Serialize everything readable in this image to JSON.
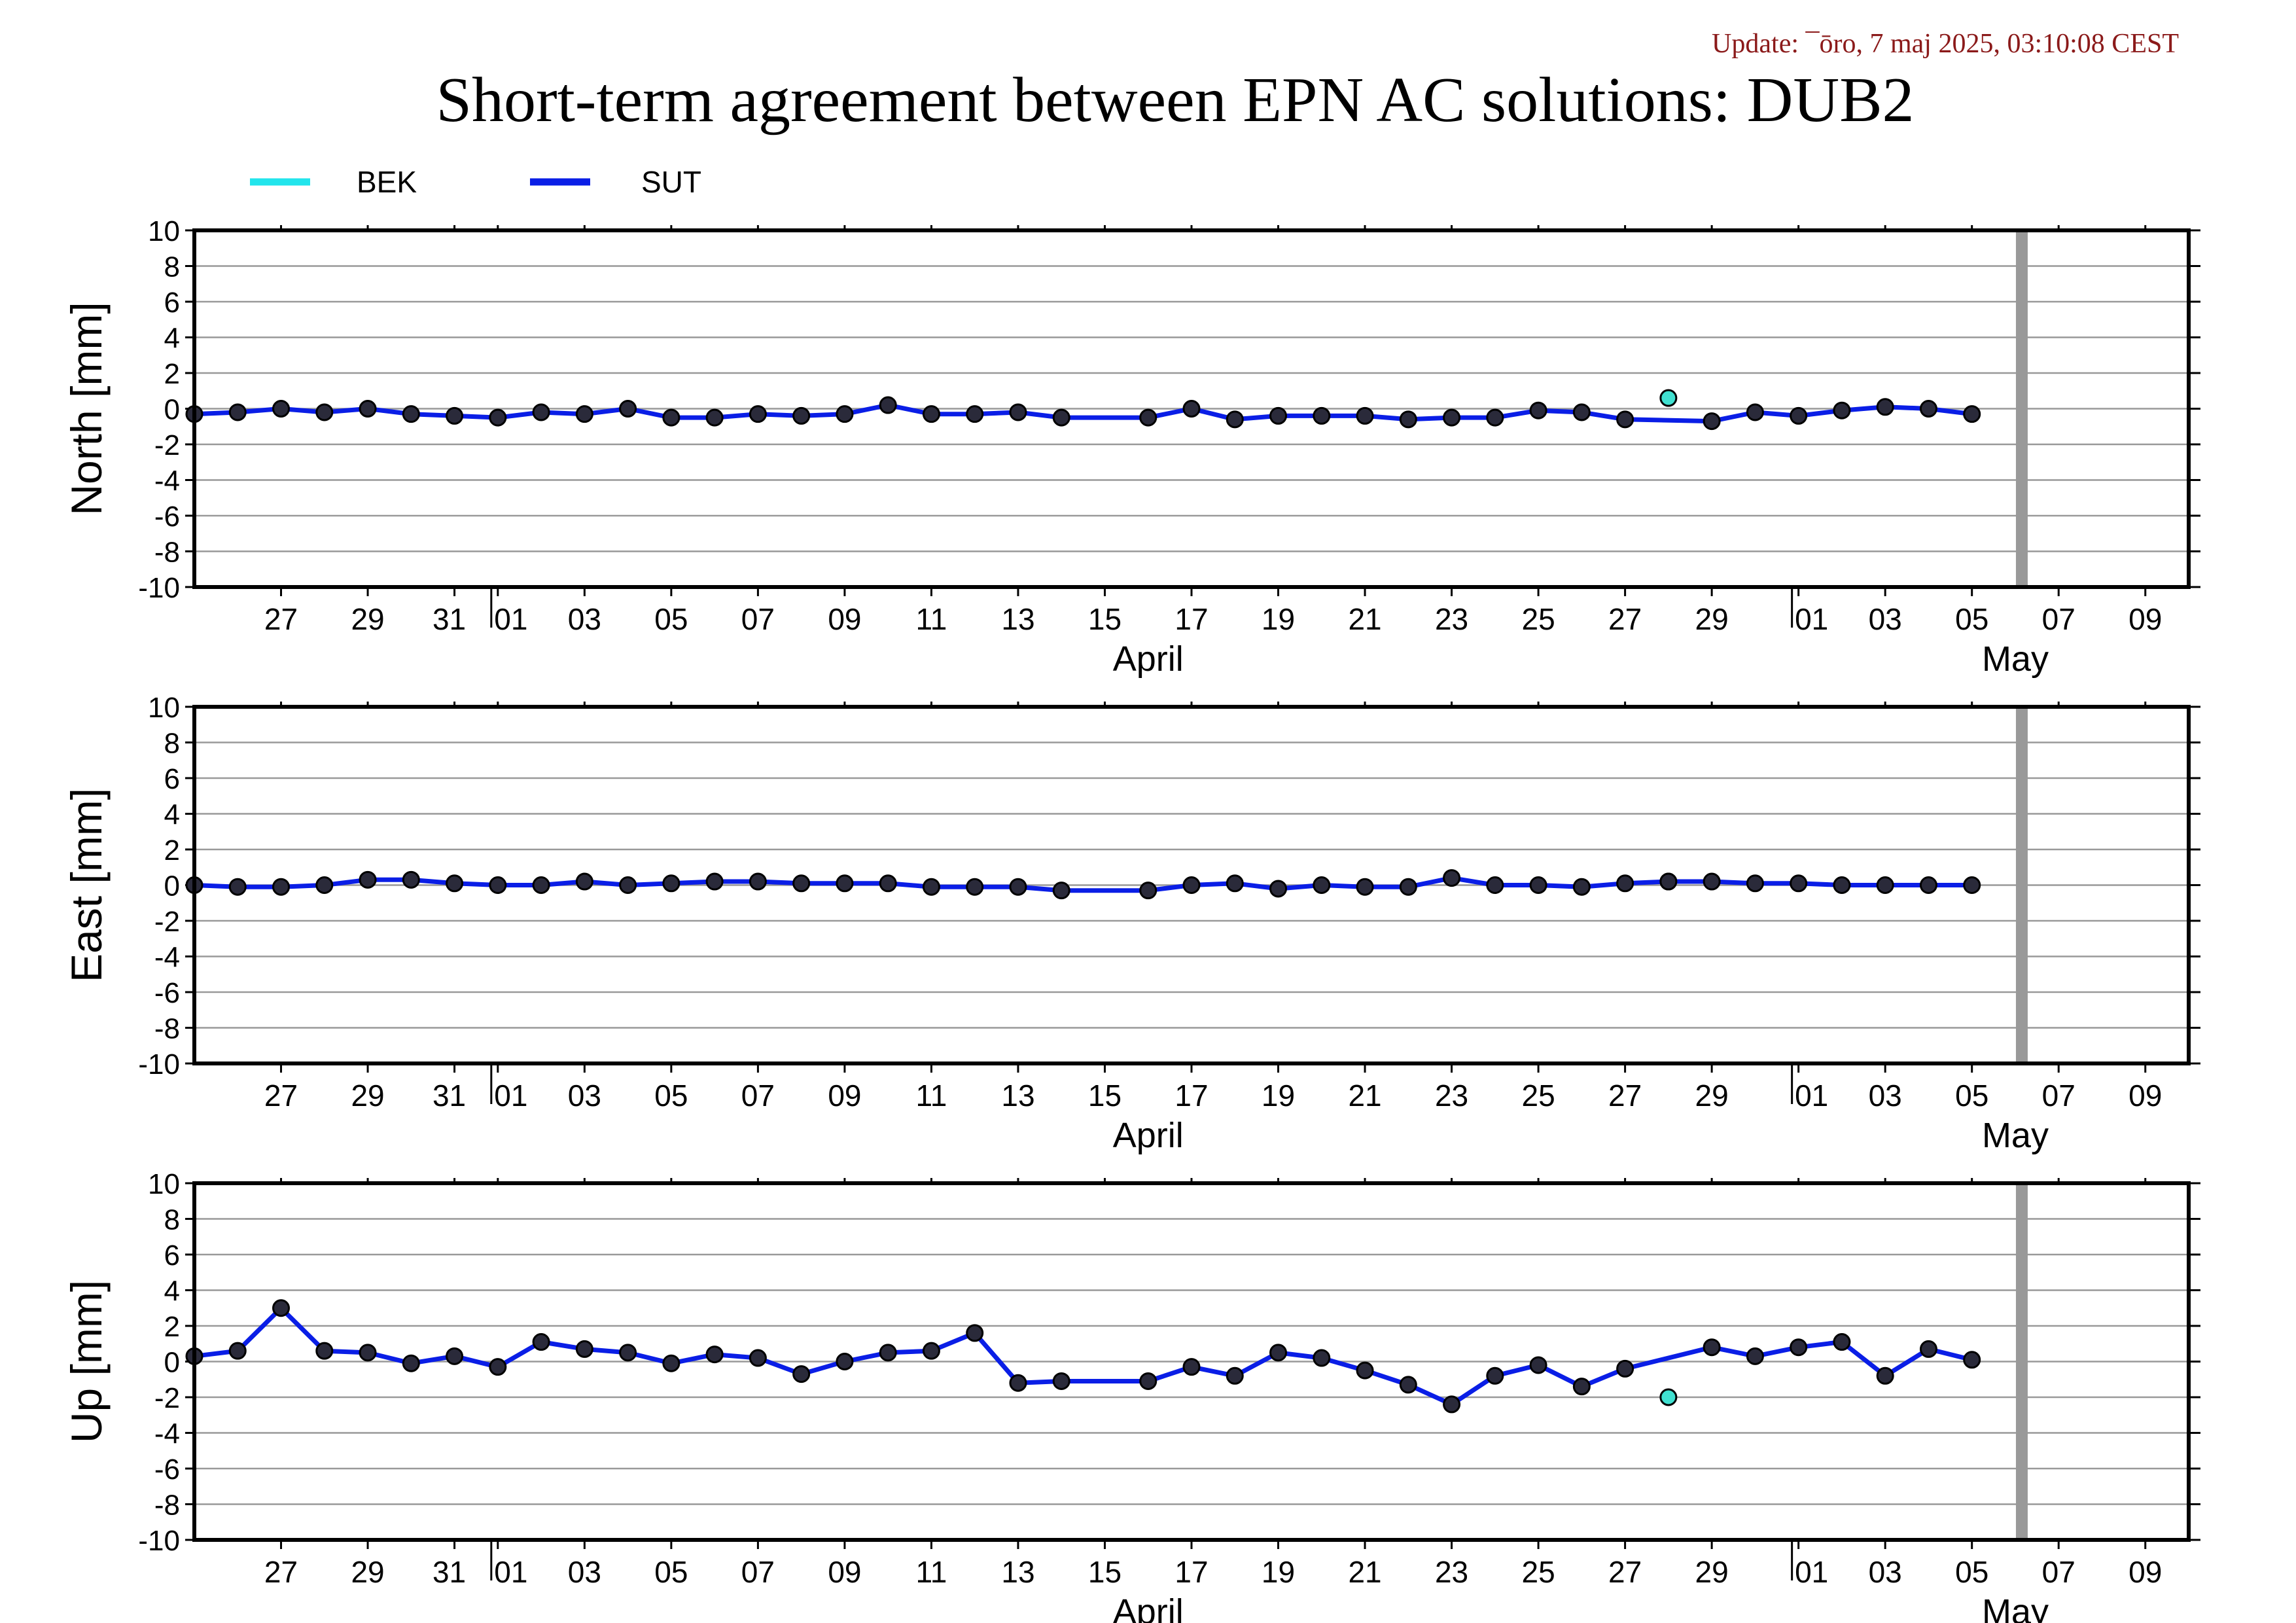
{
  "header": {
    "update": "Update: ¯ōro, 7 maj 2025, 03:10:08 CEST",
    "title": "Short-term agreement between EPN AC solutions: DUB2"
  },
  "legend": [
    {
      "name": "BEK",
      "color": "#22e5ec"
    },
    {
      "name": "SUT",
      "color": "#0a1ee6"
    }
  ],
  "colors": {
    "bek_marker": "#40e0d0",
    "sut_line": "#0a1ee6",
    "grid": "#999999",
    "now_bar": "#999999"
  },
  "chart_data": [
    {
      "type": "line",
      "ylabel": "North [mm]",
      "ylim": [
        -10,
        10
      ],
      "yticks": [
        10,
        8,
        6,
        4,
        2,
        0,
        -2,
        -4,
        -6,
        -8,
        -10
      ],
      "xlim": [
        "2025-03-25",
        "2025-05-10"
      ],
      "xticks": [
        {
          "date": "2025-03-27",
          "label": "27"
        },
        {
          "date": "2025-03-29",
          "label": "29"
        },
        {
          "date": "2025-03-31",
          "label": "31"
        },
        {
          "date": "2025-04-01",
          "label": "01"
        },
        {
          "date": "2025-04-03",
          "label": "03"
        },
        {
          "date": "2025-04-05",
          "label": "05"
        },
        {
          "date": "2025-04-07",
          "label": "07"
        },
        {
          "date": "2025-04-09",
          "label": "09"
        },
        {
          "date": "2025-04-11",
          "label": "11"
        },
        {
          "date": "2025-04-13",
          "label": "13"
        },
        {
          "date": "2025-04-15",
          "label": "15"
        },
        {
          "date": "2025-04-17",
          "label": "17"
        },
        {
          "date": "2025-04-19",
          "label": "19"
        },
        {
          "date": "2025-04-21",
          "label": "21"
        },
        {
          "date": "2025-04-23",
          "label": "23"
        },
        {
          "date": "2025-04-25",
          "label": "25"
        },
        {
          "date": "2025-04-27",
          "label": "27"
        },
        {
          "date": "2025-04-29",
          "label": "29"
        },
        {
          "date": "2025-05-01",
          "label": "01"
        },
        {
          "date": "2025-05-03",
          "label": "03"
        },
        {
          "date": "2025-05-05",
          "label": "05"
        },
        {
          "date": "2025-05-07",
          "label": "07"
        },
        {
          "date": "2025-05-09",
          "label": "09"
        }
      ],
      "month_labels": [
        {
          "date": "2025-04-16",
          "label": "April"
        },
        {
          "date": "2025-05-06",
          "label": "May"
        }
      ],
      "month_boundaries": [
        "2025-04-01",
        "2025-05-01"
      ],
      "now_marker": "2025-05-06",
      "series": [
        {
          "name": "BEK",
          "style": "points",
          "x": [
            "2025-04-28"
          ],
          "y": [
            0.6
          ]
        },
        {
          "name": "SUT",
          "style": "line",
          "x": [
            "2025-03-25",
            "2025-03-26",
            "2025-03-27",
            "2025-03-28",
            "2025-03-29",
            "2025-03-30",
            "2025-03-31",
            "2025-04-01",
            "2025-04-02",
            "2025-04-03",
            "2025-04-04",
            "2025-04-05",
            "2025-04-06",
            "2025-04-07",
            "2025-04-08",
            "2025-04-09",
            "2025-04-10",
            "2025-04-11",
            "2025-04-12",
            "2025-04-13",
            "2025-04-14",
            "2025-04-16",
            "2025-04-17",
            "2025-04-18",
            "2025-04-19",
            "2025-04-20",
            "2025-04-21",
            "2025-04-22",
            "2025-04-23",
            "2025-04-24",
            "2025-04-25",
            "2025-04-26",
            "2025-04-27",
            "2025-04-29",
            "2025-04-30",
            "2025-05-01",
            "2025-05-02",
            "2025-05-03",
            "2025-05-04",
            "2025-05-05"
          ],
          "y": [
            -0.3,
            -0.2,
            0.0,
            -0.2,
            0.0,
            -0.3,
            -0.4,
            -0.5,
            -0.2,
            -0.3,
            0.0,
            -0.5,
            -0.5,
            -0.3,
            -0.4,
            -0.3,
            0.2,
            -0.3,
            -0.3,
            -0.2,
            -0.5,
            -0.5,
            0.0,
            -0.6,
            -0.4,
            -0.4,
            -0.4,
            -0.6,
            -0.5,
            -0.5,
            -0.1,
            -0.2,
            -0.6,
            -0.7,
            -0.2,
            -0.4,
            -0.1,
            0.1,
            0.0,
            -0.3
          ]
        }
      ]
    },
    {
      "type": "line",
      "ylabel": "East [mm]",
      "ylim": [
        -10,
        10
      ],
      "yticks": [
        10,
        8,
        6,
        4,
        2,
        0,
        -2,
        -4,
        -6,
        -8,
        -10
      ],
      "xlim": [
        "2025-03-25",
        "2025-05-10"
      ],
      "xticks": [
        {
          "date": "2025-03-27",
          "label": "27"
        },
        {
          "date": "2025-03-29",
          "label": "29"
        },
        {
          "date": "2025-03-31",
          "label": "31"
        },
        {
          "date": "2025-04-01",
          "label": "01"
        },
        {
          "date": "2025-04-03",
          "label": "03"
        },
        {
          "date": "2025-04-05",
          "label": "05"
        },
        {
          "date": "2025-04-07",
          "label": "07"
        },
        {
          "date": "2025-04-09",
          "label": "09"
        },
        {
          "date": "2025-04-11",
          "label": "11"
        },
        {
          "date": "2025-04-13",
          "label": "13"
        },
        {
          "date": "2025-04-15",
          "label": "15"
        },
        {
          "date": "2025-04-17",
          "label": "17"
        },
        {
          "date": "2025-04-19",
          "label": "19"
        },
        {
          "date": "2025-04-21",
          "label": "21"
        },
        {
          "date": "2025-04-23",
          "label": "23"
        },
        {
          "date": "2025-04-25",
          "label": "25"
        },
        {
          "date": "2025-04-27",
          "label": "27"
        },
        {
          "date": "2025-04-29",
          "label": "29"
        },
        {
          "date": "2025-05-01",
          "label": "01"
        },
        {
          "date": "2025-05-03",
          "label": "03"
        },
        {
          "date": "2025-05-05",
          "label": "05"
        },
        {
          "date": "2025-05-07",
          "label": "07"
        },
        {
          "date": "2025-05-09",
          "label": "09"
        }
      ],
      "month_labels": [
        {
          "date": "2025-04-16",
          "label": "April"
        },
        {
          "date": "2025-05-06",
          "label": "May"
        }
      ],
      "month_boundaries": [
        "2025-04-01",
        "2025-05-01"
      ],
      "now_marker": "2025-05-06",
      "series": [
        {
          "name": "BEK",
          "style": "points",
          "x": [
            "2025-04-28"
          ],
          "y": [
            0.2
          ]
        },
        {
          "name": "SUT",
          "style": "line",
          "x": [
            "2025-03-25",
            "2025-03-26",
            "2025-03-27",
            "2025-03-28",
            "2025-03-29",
            "2025-03-30",
            "2025-03-31",
            "2025-04-01",
            "2025-04-02",
            "2025-04-03",
            "2025-04-04",
            "2025-04-05",
            "2025-04-06",
            "2025-04-07",
            "2025-04-08",
            "2025-04-09",
            "2025-04-10",
            "2025-04-11",
            "2025-04-12",
            "2025-04-13",
            "2025-04-14",
            "2025-04-16",
            "2025-04-17",
            "2025-04-18",
            "2025-04-19",
            "2025-04-20",
            "2025-04-21",
            "2025-04-22",
            "2025-04-23",
            "2025-04-24",
            "2025-04-25",
            "2025-04-26",
            "2025-04-27",
            "2025-04-28",
            "2025-04-29",
            "2025-04-30",
            "2025-05-01",
            "2025-05-02",
            "2025-05-03",
            "2025-05-04",
            "2025-05-05"
          ],
          "y": [
            0.0,
            -0.1,
            -0.1,
            0.0,
            0.3,
            0.3,
            0.1,
            0.0,
            0.0,
            0.2,
            0.0,
            0.1,
            0.2,
            0.2,
            0.1,
            0.1,
            0.1,
            -0.1,
            -0.1,
            -0.1,
            -0.3,
            -0.3,
            0.0,
            0.1,
            -0.2,
            0.0,
            -0.1,
            -0.1,
            0.4,
            0.0,
            0.0,
            -0.1,
            0.1,
            0.2,
            0.2,
            0.1,
            0.1,
            0.0,
            0.0,
            0.0,
            0.0
          ]
        }
      ]
    },
    {
      "type": "line",
      "ylabel": "Up [mm]",
      "ylim": [
        -10,
        10
      ],
      "yticks": [
        10,
        8,
        6,
        4,
        2,
        0,
        -2,
        -4,
        -6,
        -8,
        -10
      ],
      "xlim": [
        "2025-03-25",
        "2025-05-10"
      ],
      "xticks": [
        {
          "date": "2025-03-27",
          "label": "27"
        },
        {
          "date": "2025-03-29",
          "label": "29"
        },
        {
          "date": "2025-03-31",
          "label": "31"
        },
        {
          "date": "2025-04-01",
          "label": "01"
        },
        {
          "date": "2025-04-03",
          "label": "03"
        },
        {
          "date": "2025-04-05",
          "label": "05"
        },
        {
          "date": "2025-04-07",
          "label": "07"
        },
        {
          "date": "2025-04-09",
          "label": "09"
        },
        {
          "date": "2025-04-11",
          "label": "11"
        },
        {
          "date": "2025-04-13",
          "label": "13"
        },
        {
          "date": "2025-04-15",
          "label": "15"
        },
        {
          "date": "2025-04-17",
          "label": "17"
        },
        {
          "date": "2025-04-19",
          "label": "19"
        },
        {
          "date": "2025-04-21",
          "label": "21"
        },
        {
          "date": "2025-04-23",
          "label": "23"
        },
        {
          "date": "2025-04-25",
          "label": "25"
        },
        {
          "date": "2025-04-27",
          "label": "27"
        },
        {
          "date": "2025-04-29",
          "label": "29"
        },
        {
          "date": "2025-05-01",
          "label": "01"
        },
        {
          "date": "2025-05-03",
          "label": "03"
        },
        {
          "date": "2025-05-05",
          "label": "05"
        },
        {
          "date": "2025-05-07",
          "label": "07"
        },
        {
          "date": "2025-05-09",
          "label": "09"
        }
      ],
      "month_labels": [
        {
          "date": "2025-04-16",
          "label": "April"
        },
        {
          "date": "2025-05-06",
          "label": "May"
        }
      ],
      "month_boundaries": [
        "2025-04-01",
        "2025-05-01"
      ],
      "now_marker": "2025-05-06",
      "series": [
        {
          "name": "BEK",
          "style": "points",
          "x": [
            "2025-04-28"
          ],
          "y": [
            -2.0
          ]
        },
        {
          "name": "SUT",
          "style": "line",
          "x": [
            "2025-03-25",
            "2025-03-26",
            "2025-03-27",
            "2025-03-28",
            "2025-03-29",
            "2025-03-30",
            "2025-03-31",
            "2025-04-01",
            "2025-04-02",
            "2025-04-03",
            "2025-04-04",
            "2025-04-05",
            "2025-04-06",
            "2025-04-07",
            "2025-04-08",
            "2025-04-09",
            "2025-04-10",
            "2025-04-11",
            "2025-04-12",
            "2025-04-13",
            "2025-04-14",
            "2025-04-16",
            "2025-04-17",
            "2025-04-18",
            "2025-04-19",
            "2025-04-20",
            "2025-04-21",
            "2025-04-22",
            "2025-04-23",
            "2025-04-24",
            "2025-04-25",
            "2025-04-26",
            "2025-04-27",
            "2025-04-29",
            "2025-04-30",
            "2025-05-01",
            "2025-05-02",
            "2025-05-03",
            "2025-05-04",
            "2025-05-05"
          ],
          "y": [
            0.3,
            0.6,
            3.0,
            0.6,
            0.5,
            -0.1,
            0.3,
            -0.3,
            1.1,
            0.7,
            0.5,
            -0.1,
            0.4,
            0.2,
            -0.7,
            0.0,
            0.5,
            0.6,
            1.6,
            -1.2,
            -1.1,
            -1.1,
            -0.3,
            -0.8,
            0.5,
            0.2,
            -0.5,
            -1.3,
            -2.4,
            -0.8,
            -0.2,
            -1.4,
            -0.4,
            0.8,
            0.3,
            0.8,
            1.1,
            -0.8,
            0.7,
            0.1
          ]
        }
      ]
    }
  ]
}
